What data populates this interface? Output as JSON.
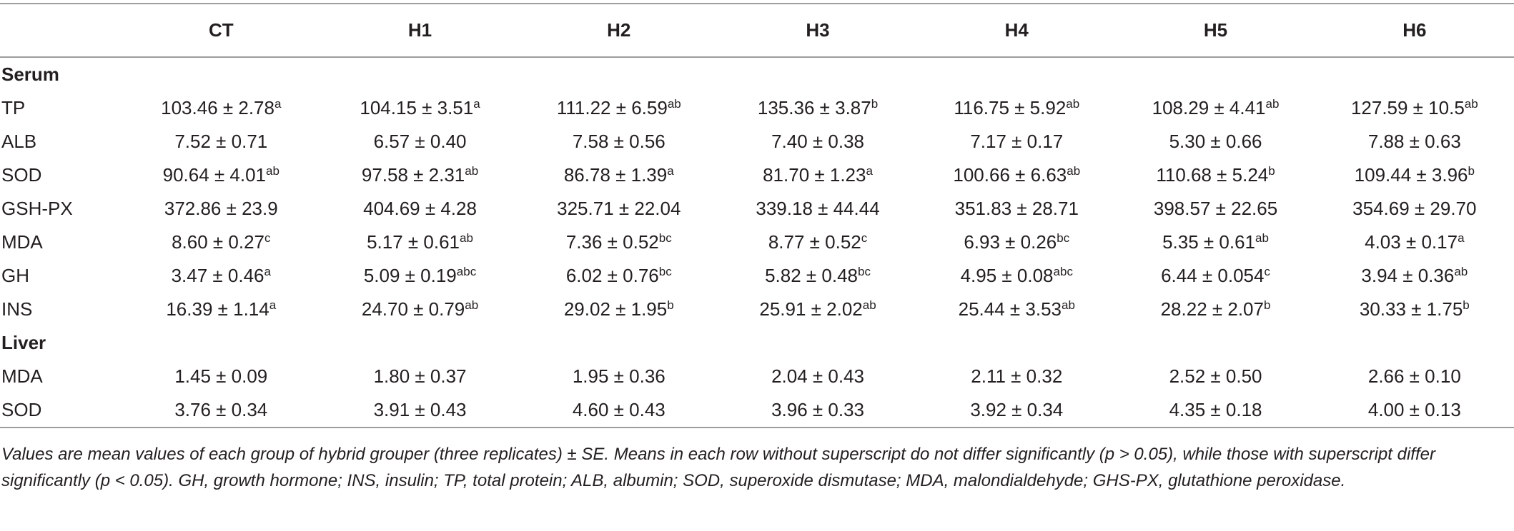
{
  "table": {
    "columns": [
      "",
      "CT",
      "H1",
      "H2",
      "H3",
      "H4",
      "H5",
      "H6"
    ],
    "sections": [
      {
        "title": "Serum",
        "rows": [
          {
            "label": "TP",
            "cells": [
              {
                "v": "103.46 ± 2.78",
                "s": "a"
              },
              {
                "v": "104.15 ± 3.51",
                "s": "a"
              },
              {
                "v": "111.22 ± 6.59",
                "s": "ab"
              },
              {
                "v": "135.36 ± 3.87",
                "s": "b"
              },
              {
                "v": "116.75 ± 5.92",
                "s": "ab"
              },
              {
                "v": "108.29 ± 4.41",
                "s": "ab"
              },
              {
                "v": "127.59 ± 10.5",
                "s": "ab"
              }
            ]
          },
          {
            "label": "ALB",
            "cells": [
              {
                "v": "7.52 ± 0.71",
                "s": ""
              },
              {
                "v": "6.57 ± 0.40",
                "s": ""
              },
              {
                "v": "7.58 ± 0.56",
                "s": ""
              },
              {
                "v": "7.40 ± 0.38",
                "s": ""
              },
              {
                "v": "7.17 ± 0.17",
                "s": ""
              },
              {
                "v": "5.30 ± 0.66",
                "s": ""
              },
              {
                "v": "7.88 ± 0.63",
                "s": ""
              }
            ]
          },
          {
            "label": "SOD",
            "cells": [
              {
                "v": "90.64 ± 4.01",
                "s": "ab"
              },
              {
                "v": "97.58 ± 2.31",
                "s": "ab"
              },
              {
                "v": "86.78 ± 1.39",
                "s": "a"
              },
              {
                "v": "81.70 ± 1.23",
                "s": "a"
              },
              {
                "v": "100.66 ± 6.63",
                "s": "ab"
              },
              {
                "v": "110.68 ± 5.24",
                "s": "b"
              },
              {
                "v": "109.44 ± 3.96",
                "s": "b"
              }
            ]
          },
          {
            "label": "GSH-PX",
            "cells": [
              {
                "v": "372.86 ± 23.9",
                "s": ""
              },
              {
                "v": "404.69 ± 4.28",
                "s": ""
              },
              {
                "v": "325.71 ± 22.04",
                "s": ""
              },
              {
                "v": "339.18 ± 44.44",
                "s": ""
              },
              {
                "v": "351.83 ± 28.71",
                "s": ""
              },
              {
                "v": "398.57 ± 22.65",
                "s": ""
              },
              {
                "v": "354.69 ± 29.70",
                "s": ""
              }
            ]
          },
          {
            "label": "MDA",
            "cells": [
              {
                "v": "8.60 ± 0.27",
                "s": "c"
              },
              {
                "v": "5.17 ± 0.61",
                "s": "ab"
              },
              {
                "v": "7.36 ± 0.52",
                "s": "bc"
              },
              {
                "v": "8.77 ± 0.52",
                "s": "c"
              },
              {
                "v": "6.93 ± 0.26",
                "s": "bc"
              },
              {
                "v": "5.35 ± 0.61",
                "s": "ab"
              },
              {
                "v": "4.03 ± 0.17",
                "s": "a"
              }
            ]
          },
          {
            "label": "GH",
            "cells": [
              {
                "v": "3.47 ± 0.46",
                "s": "a"
              },
              {
                "v": "5.09 ± 0.19",
                "s": "abc"
              },
              {
                "v": "6.02 ± 0.76",
                "s": "bc"
              },
              {
                "v": "5.82 ± 0.48",
                "s": "bc"
              },
              {
                "v": "4.95 ± 0.08",
                "s": "abc"
              },
              {
                "v": "6.44 ± 0.054",
                "s": "c"
              },
              {
                "v": "3.94 ± 0.36",
                "s": "ab"
              }
            ]
          },
          {
            "label": "INS",
            "cells": [
              {
                "v": "16.39 ± 1.14",
                "s": "a"
              },
              {
                "v": "24.70 ± 0.79",
                "s": "ab"
              },
              {
                "v": "29.02 ± 1.95",
                "s": "b"
              },
              {
                "v": "25.91 ± 2.02",
                "s": "ab"
              },
              {
                "v": "25.44 ± 3.53",
                "s": "ab"
              },
              {
                "v": "28.22 ± 2.07",
                "s": "b"
              },
              {
                "v": "30.33 ± 1.75",
                "s": "b"
              }
            ]
          }
        ]
      },
      {
        "title": "Liver",
        "rows": [
          {
            "label": "MDA",
            "cells": [
              {
                "v": "1.45 ± 0.09",
                "s": ""
              },
              {
                "v": "1.80 ± 0.37",
                "s": ""
              },
              {
                "v": "1.95 ± 0.36",
                "s": ""
              },
              {
                "v": "2.04 ± 0.43",
                "s": ""
              },
              {
                "v": "2.11 ± 0.32",
                "s": ""
              },
              {
                "v": "2.52 ± 0.50",
                "s": ""
              },
              {
                "v": "2.66 ± 0.10",
                "s": ""
              }
            ]
          },
          {
            "label": "SOD",
            "cells": [
              {
                "v": "3.76 ± 0.34",
                "s": ""
              },
              {
                "v": "3.91 ± 0.43",
                "s": ""
              },
              {
                "v": "4.60 ± 0.43",
                "s": ""
              },
              {
                "v": "3.96 ± 0.33",
                "s": ""
              },
              {
                "v": "3.92 ± 0.34",
                "s": ""
              },
              {
                "v": "4.35 ± 0.18",
                "s": ""
              },
              {
                "v": "4.00 ± 0.13",
                "s": ""
              }
            ]
          }
        ]
      }
    ]
  },
  "footnote": "Values are mean values of each group of hybrid grouper (three replicates) ± SE. Means in each row without superscript do not differ significantly (p > 0.05), while those with superscript differ significantly (p < 0.05). GH, growth hormone; INS, insulin; TP, total protein; ALB, albumin; SOD, superoxide dismutase; MDA, malondialdehyde; GHS-PX, glutathione peroxidase."
}
